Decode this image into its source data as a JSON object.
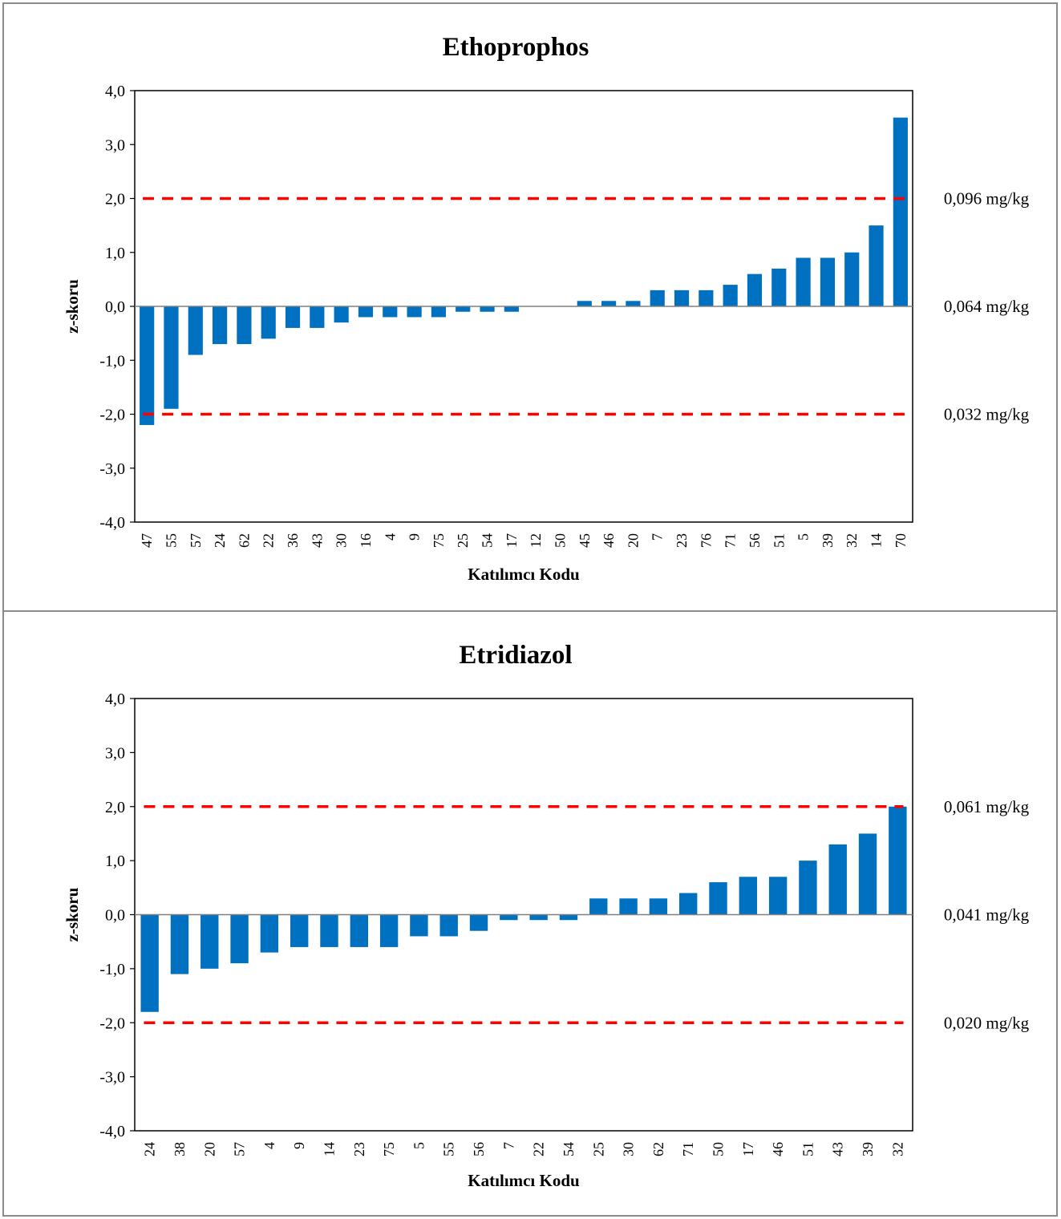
{
  "colors": {
    "bar": "#0070C0",
    "limit_line": "#FF0000",
    "axis": "#000000",
    "border": "#8C8C8C"
  },
  "chart_data": [
    {
      "type": "bar",
      "title": "Ethoprophos",
      "xlabel": "Katılımcı Kodu",
      "ylabel": "z-skoru",
      "ylim": [
        -4,
        4
      ],
      "yticks": [
        "4,0",
        "3,0",
        "2,0",
        "1,0",
        "0,0",
        "-1,0",
        "-2,0",
        "-3,0",
        "-4,0"
      ],
      "categories": [
        "47",
        "55",
        "57",
        "24",
        "62",
        "22",
        "36",
        "43",
        "30",
        "16",
        "4",
        "9",
        "75",
        "25",
        "54",
        "17",
        "12",
        "50",
        "45",
        "46",
        "20",
        "7",
        "23",
        "76",
        "71",
        "56",
        "51",
        "5",
        "39",
        "32",
        "14",
        "70"
      ],
      "values": [
        -2.2,
        -1.9,
        -0.9,
        -0.7,
        -0.7,
        -0.6,
        -0.4,
        -0.4,
        -0.3,
        -0.2,
        -0.2,
        -0.2,
        -0.2,
        -0.1,
        -0.1,
        -0.1,
        0,
        0,
        0.1,
        0.1,
        0.1,
        0.3,
        0.3,
        0.3,
        0.4,
        0.6,
        0.7,
        0.9,
        0.9,
        1.0,
        1.5,
        3.5
      ],
      "limits": [
        2,
        -2
      ],
      "grid": false,
      "reference_labels": [
        {
          "z": 2,
          "text": "0,096 mg/kg"
        },
        {
          "z": 0,
          "text": "0,064 mg/kg"
        },
        {
          "z": -2,
          "text": "0,032 mg/kg"
        }
      ]
    },
    {
      "type": "bar",
      "title": "Etridiazol",
      "xlabel": "Katılımcı Kodu",
      "ylabel": "z-skoru",
      "ylim": [
        -4,
        4
      ],
      "yticks": [
        "4,0",
        "3,0",
        "2,0",
        "1,0",
        "0,0",
        "-1,0",
        "-2,0",
        "-3,0",
        "-4,0"
      ],
      "categories": [
        "24",
        "38",
        "20",
        "57",
        "4",
        "9",
        "14",
        "23",
        "75",
        "5",
        "55",
        "56",
        "7",
        "22",
        "54",
        "25",
        "30",
        "62",
        "71",
        "50",
        "17",
        "46",
        "51",
        "43",
        "39",
        "32"
      ],
      "values": [
        -1.8,
        -1.1,
        -1.0,
        -0.9,
        -0.7,
        -0.6,
        -0.6,
        -0.6,
        -0.6,
        -0.4,
        -0.4,
        -0.3,
        -0.1,
        -0.1,
        -0.1,
        0.3,
        0.3,
        0.3,
        0.4,
        0.6,
        0.7,
        0.7,
        1.0,
        1.3,
        1.5,
        2.0
      ],
      "limits": [
        2,
        -2
      ],
      "grid": false,
      "reference_labels": [
        {
          "z": 2,
          "text": "0,061 mg/kg"
        },
        {
          "z": 0,
          "text": "0,041 mg/kg"
        },
        {
          "z": -2,
          "text": "0,020 mg/kg"
        }
      ]
    }
  ]
}
